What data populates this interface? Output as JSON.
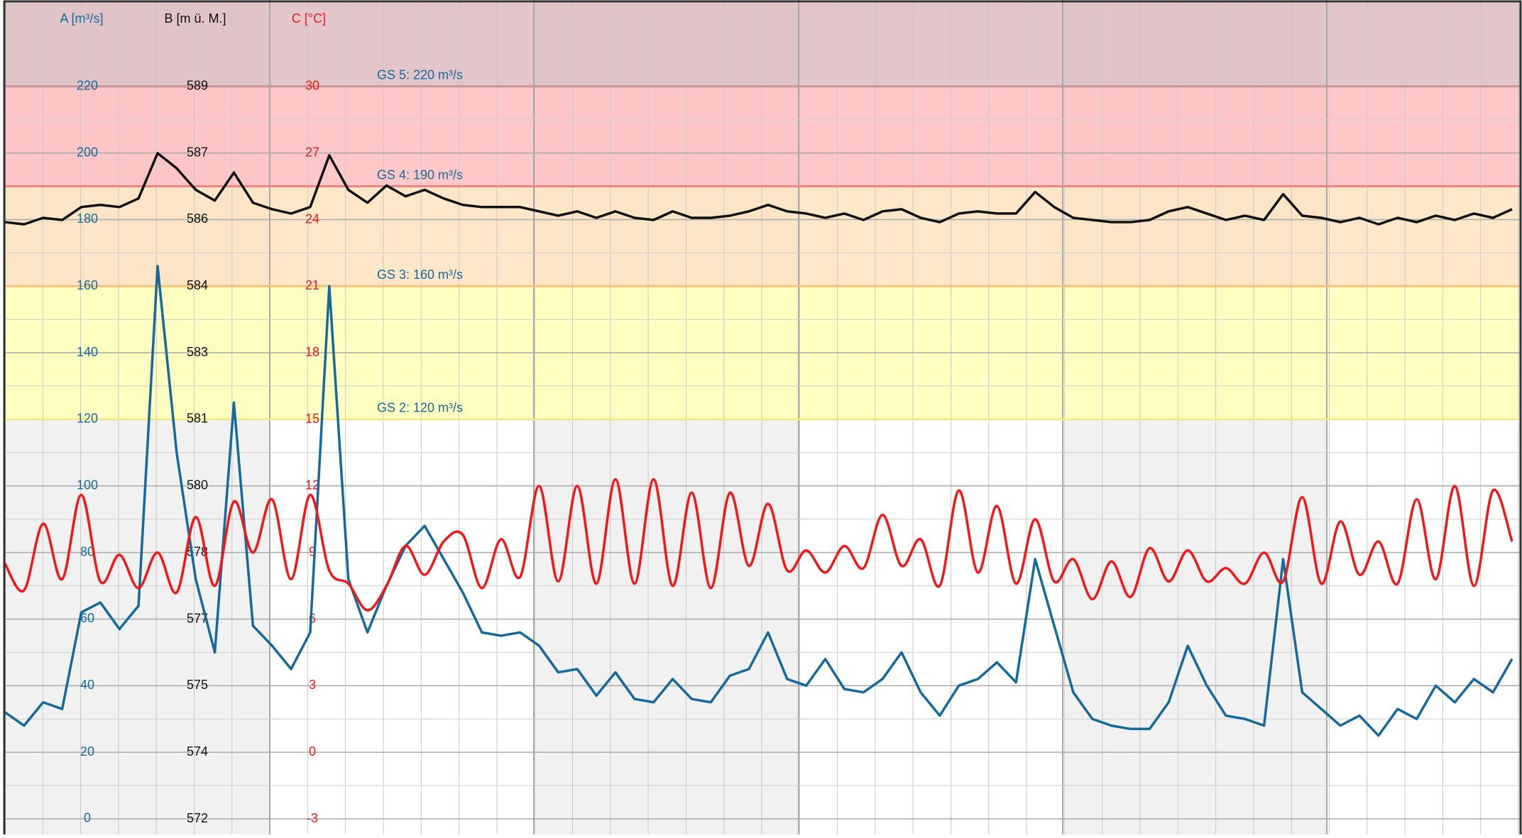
{
  "chart_data": {
    "type": "line",
    "axes": [
      {
        "label": "A [m³/s]",
        "color": "#166a9a",
        "ylim": [
          -4.69,
          245.1
        ],
        "yticks": [
          0,
          20,
          40,
          60,
          80,
          100,
          120,
          140,
          160,
          180,
          200,
          220
        ]
      },
      {
        "label": "B [m ü. M.]",
        "color": "#111111",
        "ylim": [
          571.638,
          590.94
        ],
        "yticks": [
          {
            "value": 572,
            "label": "572"
          },
          {
            "value": 573.545,
            "label": "574"
          },
          {
            "value": 575.091,
            "label": "575"
          },
          {
            "value": 576.636,
            "label": "577"
          },
          {
            "value": 578.182,
            "label": "578"
          },
          {
            "value": 579.727,
            "label": "580"
          },
          {
            "value": 581.273,
            "label": "581"
          },
          {
            "value": 582.818,
            "label": "583"
          },
          {
            "value": 584.364,
            "label": "584"
          },
          {
            "value": 585.909,
            "label": "586"
          },
          {
            "value": 587.455,
            "label": "587"
          },
          {
            "value": 589,
            "label": "589"
          }
        ]
      },
      {
        "label": "C [°C]",
        "color": "#f01818",
        "ylim": [
          -3.7,
          33.77
        ],
        "yticks": [
          -3,
          0,
          3,
          6,
          9,
          12,
          15,
          18,
          21,
          24,
          27,
          30
        ]
      }
    ],
    "bands": [
      {
        "from": 120,
        "label": "GS 2: 120 m³/s",
        "color": "#ffffb4",
        "line": "#f2ea8a"
      },
      {
        "from": 160,
        "label": "GS 3: 160 m³/s",
        "color": "#fde2bc",
        "line": "#f6c27a"
      },
      {
        "from": 190,
        "label": "GS 4: 190 m³/s",
        "color": "#ffbcbc",
        "line": "#f08484"
      },
      {
        "from": 220,
        "label": "GS 5: 220 m³/s",
        "color": "#dcbabe",
        "line": "#c89498"
      }
    ],
    "grid": true,
    "series": [
      {
        "color": "#166a9a",
        "axis": 0,
        "smooth": false,
        "values": [
          32,
          28,
          35,
          33,
          62,
          65,
          57,
          64,
          166,
          110,
          72,
          50,
          125,
          58,
          52,
          45,
          56,
          160,
          72,
          56,
          70,
          82,
          88,
          78,
          68,
          56,
          55,
          56,
          52,
          44,
          45,
          37,
          44,
          36,
          35,
          42,
          36,
          35,
          43,
          45,
          56,
          42,
          40,
          48,
          39,
          38,
          42,
          50,
          38,
          31,
          40,
          42,
          47,
          41,
          78,
          58,
          38,
          30,
          28,
          27,
          27,
          35,
          52,
          40,
          31,
          30,
          28,
          78,
          38,
          33,
          28,
          31,
          25,
          33,
          30,
          40,
          35,
          42,
          38,
          48
        ]
      },
      {
        "color": "#111111",
        "axis": 1,
        "smooth": false,
        "values": [
          585.85,
          585.8,
          585.95,
          585.9,
          586.2,
          586.25,
          586.2,
          586.4,
          587.45,
          587.1,
          586.6,
          586.35,
          587.0,
          586.3,
          586.15,
          586.05,
          586.2,
          587.4,
          586.6,
          586.3,
          586.7,
          586.45,
          586.6,
          586.4,
          586.25,
          586.2,
          586.2,
          586.2,
          586.1,
          586.0,
          586.1,
          585.95,
          586.1,
          585.95,
          585.9,
          586.1,
          585.95,
          585.95,
          586.0,
          586.1,
          586.25,
          586.1,
          586.05,
          585.95,
          586.05,
          585.9,
          586.1,
          586.15,
          585.95,
          585.85,
          586.05,
          586.1,
          586.05,
          586.05,
          586.55,
          586.2,
          585.95,
          585.9,
          585.85,
          585.85,
          585.9,
          586.1,
          586.2,
          586.05,
          585.9,
          586.0,
          585.9,
          586.5,
          586.0,
          585.95,
          585.85,
          585.95,
          585.8,
          585.95,
          585.85,
          586.0,
          585.9,
          586.05,
          585.95,
          586.15
        ]
      },
      {
        "color": "#f01818",
        "axis": 2,
        "smooth": true,
        "values": [
          8.5,
          7.3,
          10.3,
          7.8,
          11.6,
          7.7,
          8.9,
          7.4,
          9.0,
          7.2,
          10.6,
          7.5,
          11.3,
          9.0,
          11.4,
          7.8,
          11.6,
          8.2,
          7.6,
          6.4,
          7.5,
          9.3,
          8.0,
          9.5,
          9.8,
          7.4,
          9.6,
          7.9,
          12.0,
          7.7,
          12.0,
          7.6,
          12.3,
          7.6,
          12.3,
          7.5,
          11.7,
          7.4,
          11.7,
          8.4,
          11.2,
          8.2,
          9.1,
          8.1,
          9.3,
          8.3,
          10.7,
          8.4,
          9.6,
          7.5,
          11.8,
          8.1,
          11.1,
          7.6,
          10.5,
          7.7,
          8.7,
          6.9,
          8.6,
          7.0,
          9.2,
          7.7,
          9.1,
          7.7,
          8.3,
          7.6,
          9.0,
          7.7,
          11.5,
          7.6,
          10.4,
          8.0,
          9.5,
          7.6,
          11.4,
          7.8,
          12.0,
          7.5,
          11.8,
          9.5
        ]
      }
    ]
  }
}
